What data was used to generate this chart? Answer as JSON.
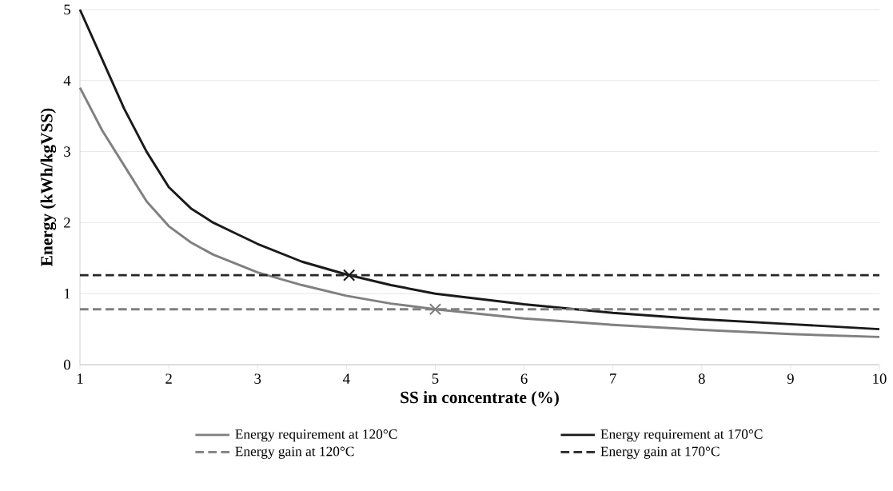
{
  "chart_data": {
    "type": "line",
    "xlabel": "SS in concentrate (%)",
    "ylabel": "Energy (kWh/kgVSS)",
    "xlim": [
      1,
      10
    ],
    "ylim": [
      0,
      5
    ],
    "xticks": [
      1,
      2,
      3,
      4,
      5,
      6,
      7,
      8,
      9,
      10
    ],
    "yticks": [
      0,
      1,
      2,
      3,
      4,
      5
    ],
    "grid": "y",
    "legend": "bottom",
    "marker": "none",
    "series": [
      {
        "name": "Energy requirement at 120°C",
        "color": "#808080",
        "line_style": "solid",
        "x": [
          1,
          1.25,
          1.5,
          1.75,
          2,
          2.25,
          2.5,
          3,
          3.5,
          4,
          4.5,
          5,
          6,
          7,
          8,
          9,
          10
        ],
        "values": [
          3.9,
          3.3,
          2.8,
          2.3,
          1.95,
          1.72,
          1.55,
          1.3,
          1.12,
          0.97,
          0.86,
          0.78,
          0.65,
          0.56,
          0.49,
          0.43,
          0.39
        ]
      },
      {
        "name": "Energy requirement at 170°C",
        "color": "#1a1a1a",
        "line_style": "solid",
        "x": [
          1,
          1.25,
          1.5,
          1.75,
          2,
          2.25,
          2.5,
          2.75,
          3,
          3.5,
          4,
          4.5,
          5,
          6,
          7,
          8,
          9,
          10
        ],
        "values": [
          5.0,
          4.3,
          3.6,
          3.0,
          2.5,
          2.2,
          2.0,
          1.85,
          1.7,
          1.45,
          1.27,
          1.12,
          1.0,
          0.85,
          0.73,
          0.64,
          0.57,
          0.5
        ]
      },
      {
        "name": "Energy gain at 120°C",
        "color": "#808080",
        "line_style": "dashed",
        "x": [
          1,
          10
        ],
        "values": [
          0.78,
          0.78
        ]
      },
      {
        "name": "Energy gain at 170°C",
        "color": "#262626",
        "line_style": "dashed",
        "x": [
          1,
          10
        ],
        "values": [
          1.26,
          1.26
        ]
      },
      {
        "type": "scatter",
        "marker": "cross",
        "color": "#1a1a1a",
        "x": [
          4.03
        ],
        "values": [
          1.26
        ]
      },
      {
        "type": "scatter",
        "marker": "cross",
        "color": "#808080",
        "x": [
          5
        ],
        "values": [
          0.78
        ]
      }
    ]
  }
}
